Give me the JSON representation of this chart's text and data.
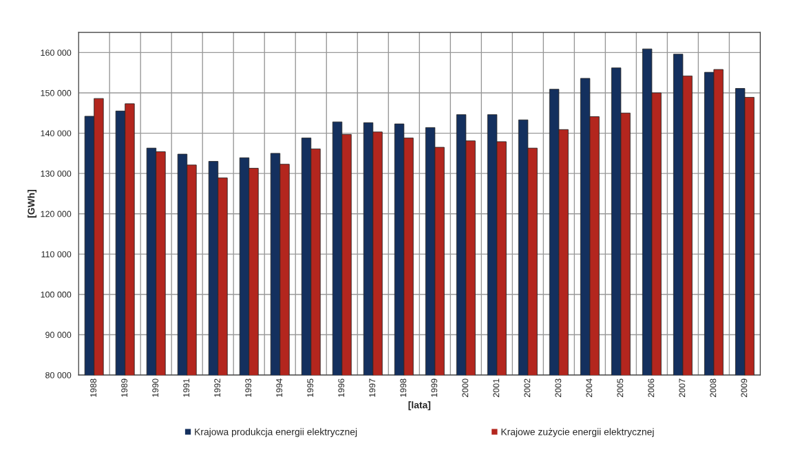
{
  "chart_data": {
    "type": "bar",
    "xlabel": "[lata]",
    "ylabel": "[GWh]",
    "categories": [
      "1988",
      "1989",
      "1990",
      "1991",
      "1992",
      "1993",
      "1994",
      "1995",
      "1996",
      "1997",
      "1998",
      "1999",
      "2000",
      "2001",
      "2002",
      "2003",
      "2004",
      "2005",
      "2006",
      "2007",
      "2008",
      "2009"
    ],
    "series": [
      {
        "name": "Krajowa produkcja energii elektrycznej",
        "color": "#14305e",
        "values": [
          144200,
          145500,
          136300,
          134800,
          133000,
          133900,
          135000,
          138800,
          142800,
          142600,
          142300,
          141400,
          144600,
          144600,
          143300,
          150900,
          153600,
          156200,
          160900,
          159600,
          155100,
          151100
        ]
      },
      {
        "name": "Krajowe zużycie energii elektrycznej",
        "color": "#b3261e",
        "values": [
          148600,
          147300,
          135400,
          132100,
          128900,
          131300,
          132300,
          136100,
          139700,
          140300,
          138800,
          136500,
          138100,
          137900,
          136300,
          140900,
          144100,
          145000,
          150000,
          154200,
          155800,
          148900
        ]
      }
    ],
    "ylim": [
      80000,
      165000
    ],
    "yticks": [
      {
        "value": 80000,
        "label": "80 000"
      },
      {
        "value": 90000,
        "label": "90 000"
      },
      {
        "value": 100000,
        "label": "100 000"
      },
      {
        "value": 110000,
        "label": "110 000"
      },
      {
        "value": 120000,
        "label": "120 000"
      },
      {
        "value": 130000,
        "label": "130 000"
      },
      {
        "value": 140000,
        "label": "140 000"
      },
      {
        "value": 150000,
        "label": "150 000"
      },
      {
        "value": 160000,
        "label": "160 000"
      }
    ],
    "grid": true,
    "legend": "bottom"
  }
}
